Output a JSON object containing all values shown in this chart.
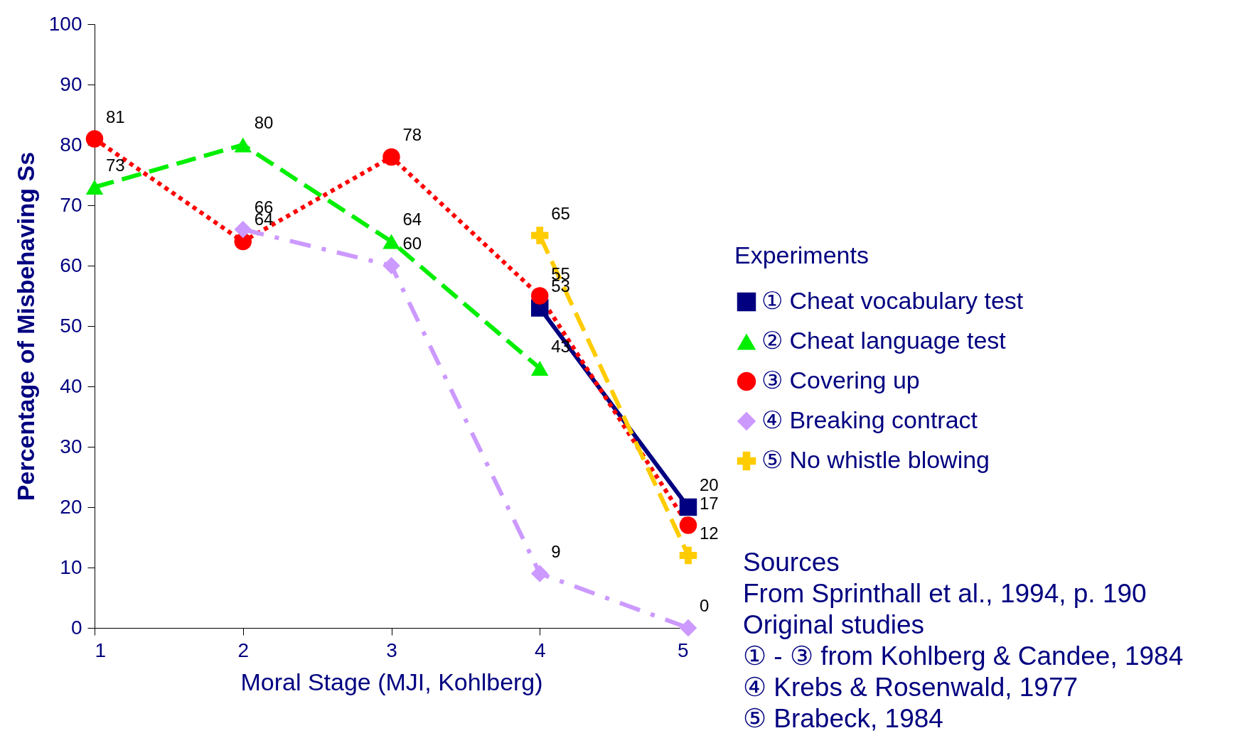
{
  "chart_data": {
    "type": "line",
    "xlabel": "Moral Stage  (MJI, Kohlberg)",
    "ylabel": "Percentage of Misbehaving Ss",
    "legend_title": "Experiments",
    "legend": "right",
    "data_labels": true,
    "grid": false,
    "xlim": [
      1,
      5
    ],
    "xticks": [
      1,
      2,
      3,
      4,
      5
    ],
    "ylim": [
      0,
      100
    ],
    "yticks": [
      0,
      10,
      20,
      30,
      40,
      50,
      60,
      70,
      80,
      90,
      100
    ],
    "series": [
      {
        "name": "① Cheat vocabulary test",
        "color": "#000080",
        "marker": "square",
        "line_style": "solid",
        "x": [
          4,
          5
        ],
        "values": [
          53,
          20
        ]
      },
      {
        "name": "② Cheat language test",
        "color": "#00ee00",
        "marker": "triangle",
        "line_style": "dashed",
        "x": [
          1,
          2,
          3,
          4
        ],
        "values": [
          73,
          80,
          64,
          43
        ]
      },
      {
        "name": "③ Covering up",
        "color": "#ff0000",
        "marker": "circle",
        "line_style": "dotted",
        "x": [
          1,
          2,
          3,
          4,
          5
        ],
        "values": [
          81,
          64,
          78,
          55,
          17
        ]
      },
      {
        "name": "④ Breaking contract",
        "color": "#cc99ff",
        "marker": "diamond",
        "line_style": "dashdot",
        "x": [
          2,
          3,
          4,
          5
        ],
        "values": [
          66,
          60,
          9,
          0
        ]
      },
      {
        "name": "⑤ No whistle blowing",
        "color": "#ffcc00",
        "marker": "cross",
        "line_style": "dashed",
        "x": [
          4,
          5
        ],
        "values": [
          65,
          12
        ]
      }
    ],
    "annotations": [
      "Sources",
      "From Sprinthall et al., 1994, p. 190",
      "Original studies",
      "① - ③ from Kohlberg & Candee, 1984",
      "④ Krebs & Rosenwald, 1977",
      "⑤ Brabeck, 1984"
    ]
  }
}
